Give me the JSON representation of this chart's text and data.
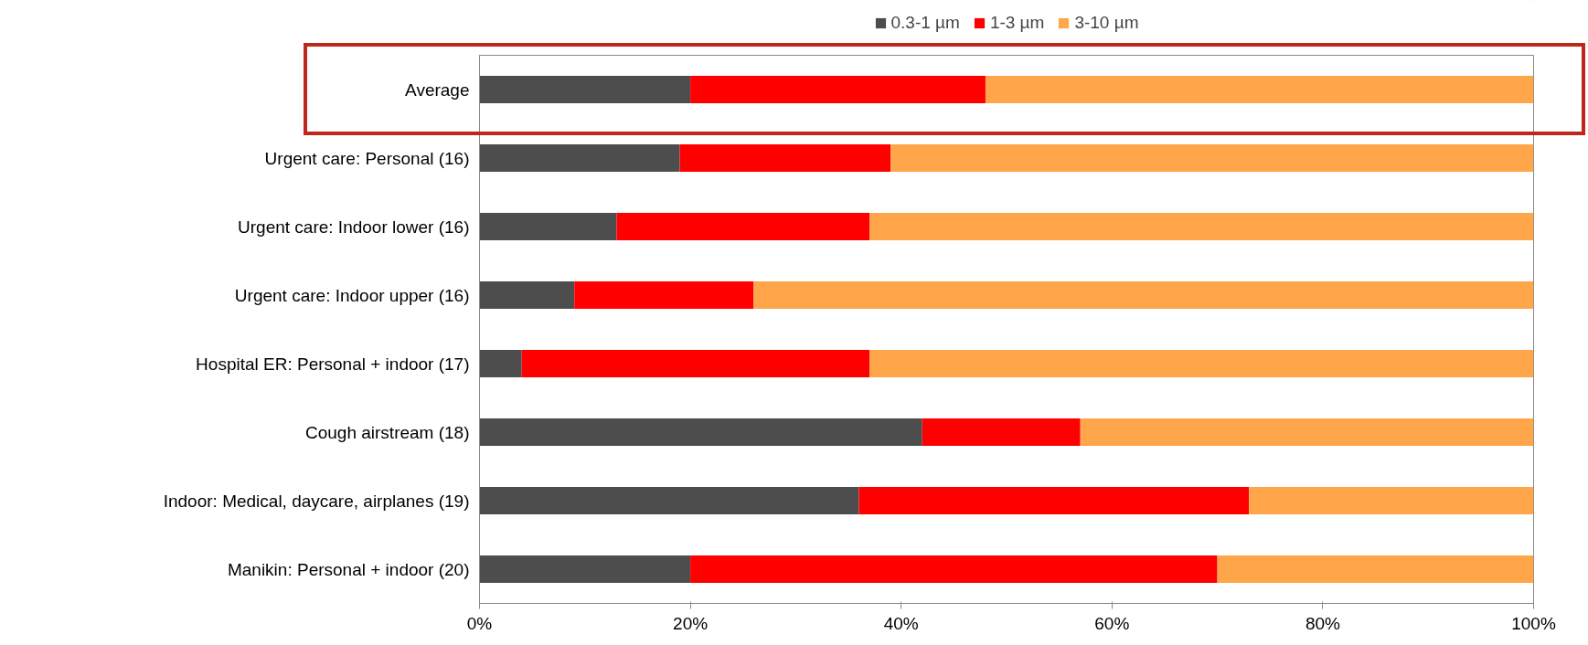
{
  "chart_data": {
    "type": "bar",
    "orientation": "horizontal",
    "stacked": true,
    "categories": [
      "Average",
      "Urgent care: Personal (16)",
      "Urgent care: Indoor lower (16)",
      "Urgent care: Indoor upper (16)",
      "Hospital ER: Personal + indoor (17)",
      "Cough airstream (18)",
      "Indoor: Medical, daycare, airplanes (19)",
      "Manikin: Personal + indoor (20)"
    ],
    "series": [
      {
        "name": "0.3-1 µm",
        "color": "#4d4d4d",
        "values": [
          20,
          19,
          13,
          9,
          4,
          42,
          36,
          20
        ]
      },
      {
        "name": "1-3 µm",
        "color": "#ff0000",
        "values": [
          28,
          20,
          24,
          17,
          33,
          15,
          37,
          50
        ]
      },
      {
        "name": "3-10 µm",
        "color": "#ffa54a",
        "values": [
          52,
          61,
          63,
          74,
          63,
          43,
          27,
          30
        ]
      }
    ],
    "xlim": [
      0,
      100
    ],
    "xticks": [
      {
        "value": 0,
        "label": "0%"
      },
      {
        "value": 20,
        "label": "20%"
      },
      {
        "value": 40,
        "label": "40%"
      },
      {
        "value": 60,
        "label": "60%"
      },
      {
        "value": 80,
        "label": "80%"
      },
      {
        "value": 100,
        "label": "100%"
      }
    ],
    "legend": "top",
    "grid": false
  }
}
